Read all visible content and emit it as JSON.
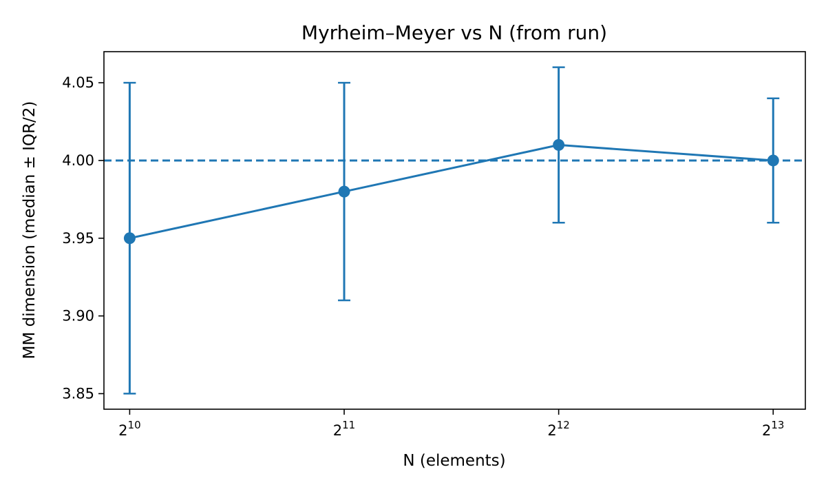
{
  "chart_data": {
    "type": "line",
    "title": "Myrheim–Meyer vs N (from run)",
    "xlabel": "N (elements)",
    "ylabel": "MM dimension (median ± IQR/2)",
    "x_scale": "log2",
    "x": [
      1024,
      2048,
      4096,
      8192
    ],
    "x_tick_labels": [
      {
        "base": "2",
        "exp": "10"
      },
      {
        "base": "2",
        "exp": "11"
      },
      {
        "base": "2",
        "exp": "12"
      },
      {
        "base": "2",
        "exp": "13"
      }
    ],
    "ylim": [
      3.84,
      4.07
    ],
    "y_ticks": [
      3.85,
      3.9,
      3.95,
      4.0,
      4.05
    ],
    "y_tick_labels": [
      "3.85",
      "3.90",
      "3.95",
      "4.00",
      "4.05"
    ],
    "series": [
      {
        "values": [
          3.95,
          3.98,
          4.01,
          4.0
        ],
        "err_low": [
          3.85,
          3.91,
          3.96,
          3.96
        ],
        "err_high": [
          4.05,
          4.05,
          4.06,
          4.04
        ],
        "color": "#1f77b4"
      }
    ],
    "reference_line": {
      "y": 4.0,
      "style": "dashed",
      "color": "#1f77b4"
    },
    "grid": false,
    "legend": "none"
  }
}
